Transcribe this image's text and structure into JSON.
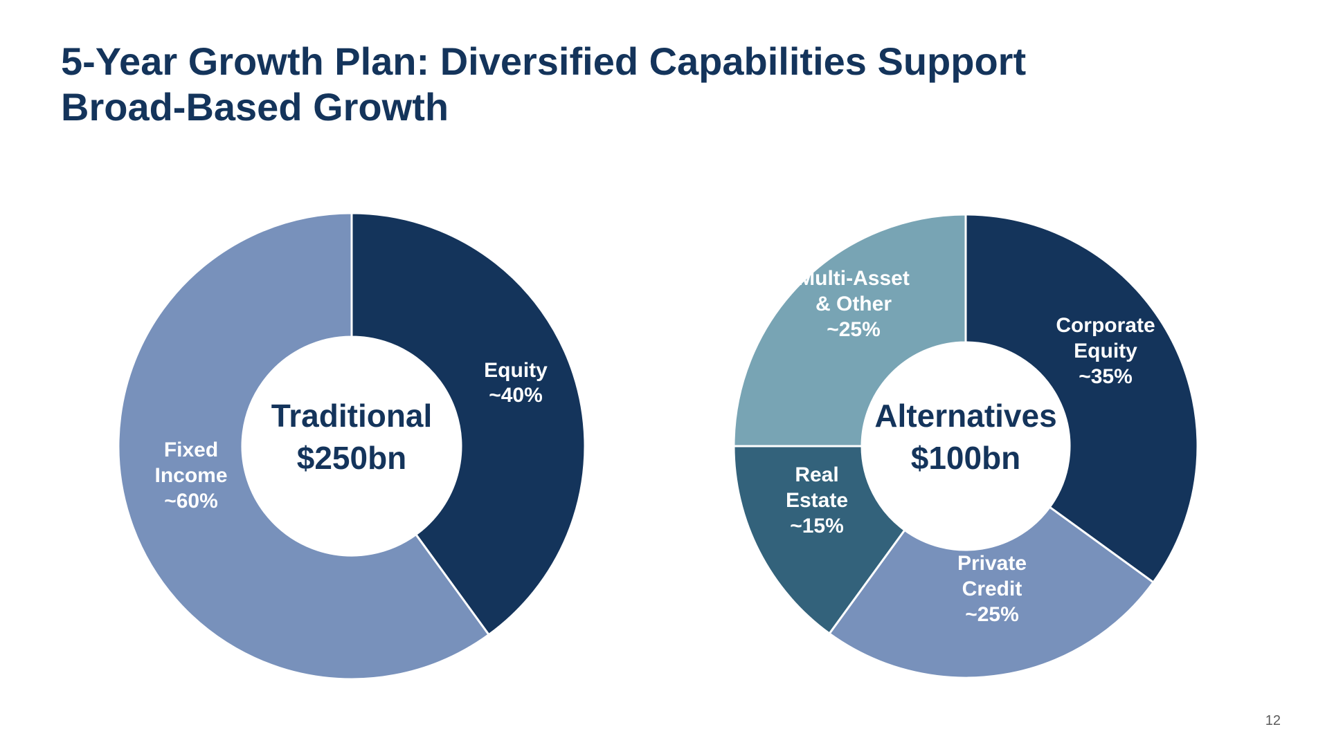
{
  "title": {
    "line1": "5-Year Growth Plan: Diversified Capabilities Support",
    "line2": "Broad-Based Growth"
  },
  "page_number": "12",
  "chart_data": [
    {
      "type": "pie",
      "title": "",
      "center_label": [
        "Traditional",
        "$250bn"
      ],
      "slices": [
        {
          "label_lines": [
            "Equity",
            "~40%"
          ],
          "value": 40,
          "color": "#14345b"
        },
        {
          "label_lines": [
            "Fixed",
            "Income",
            "~60%"
          ],
          "value": 60,
          "color": "#7891bb"
        }
      ]
    },
    {
      "type": "pie",
      "title": "",
      "center_label": [
        "Alternatives",
        "$100bn"
      ],
      "slices": [
        {
          "label_lines": [
            "Corporate",
            "Equity",
            "~35%"
          ],
          "value": 35,
          "color": "#14345b"
        },
        {
          "label_lines": [
            "Private",
            "Credit",
            "~25%"
          ],
          "value": 25,
          "color": "#7891bb"
        },
        {
          "label_lines": [
            "Real",
            "Estate",
            "~15%"
          ],
          "value": 15,
          "color": "#33627b"
        },
        {
          "label_lines": [
            "Multi-Asset",
            "& Other",
            "~25%"
          ],
          "value": 25,
          "color": "#78a4b4"
        }
      ]
    }
  ]
}
